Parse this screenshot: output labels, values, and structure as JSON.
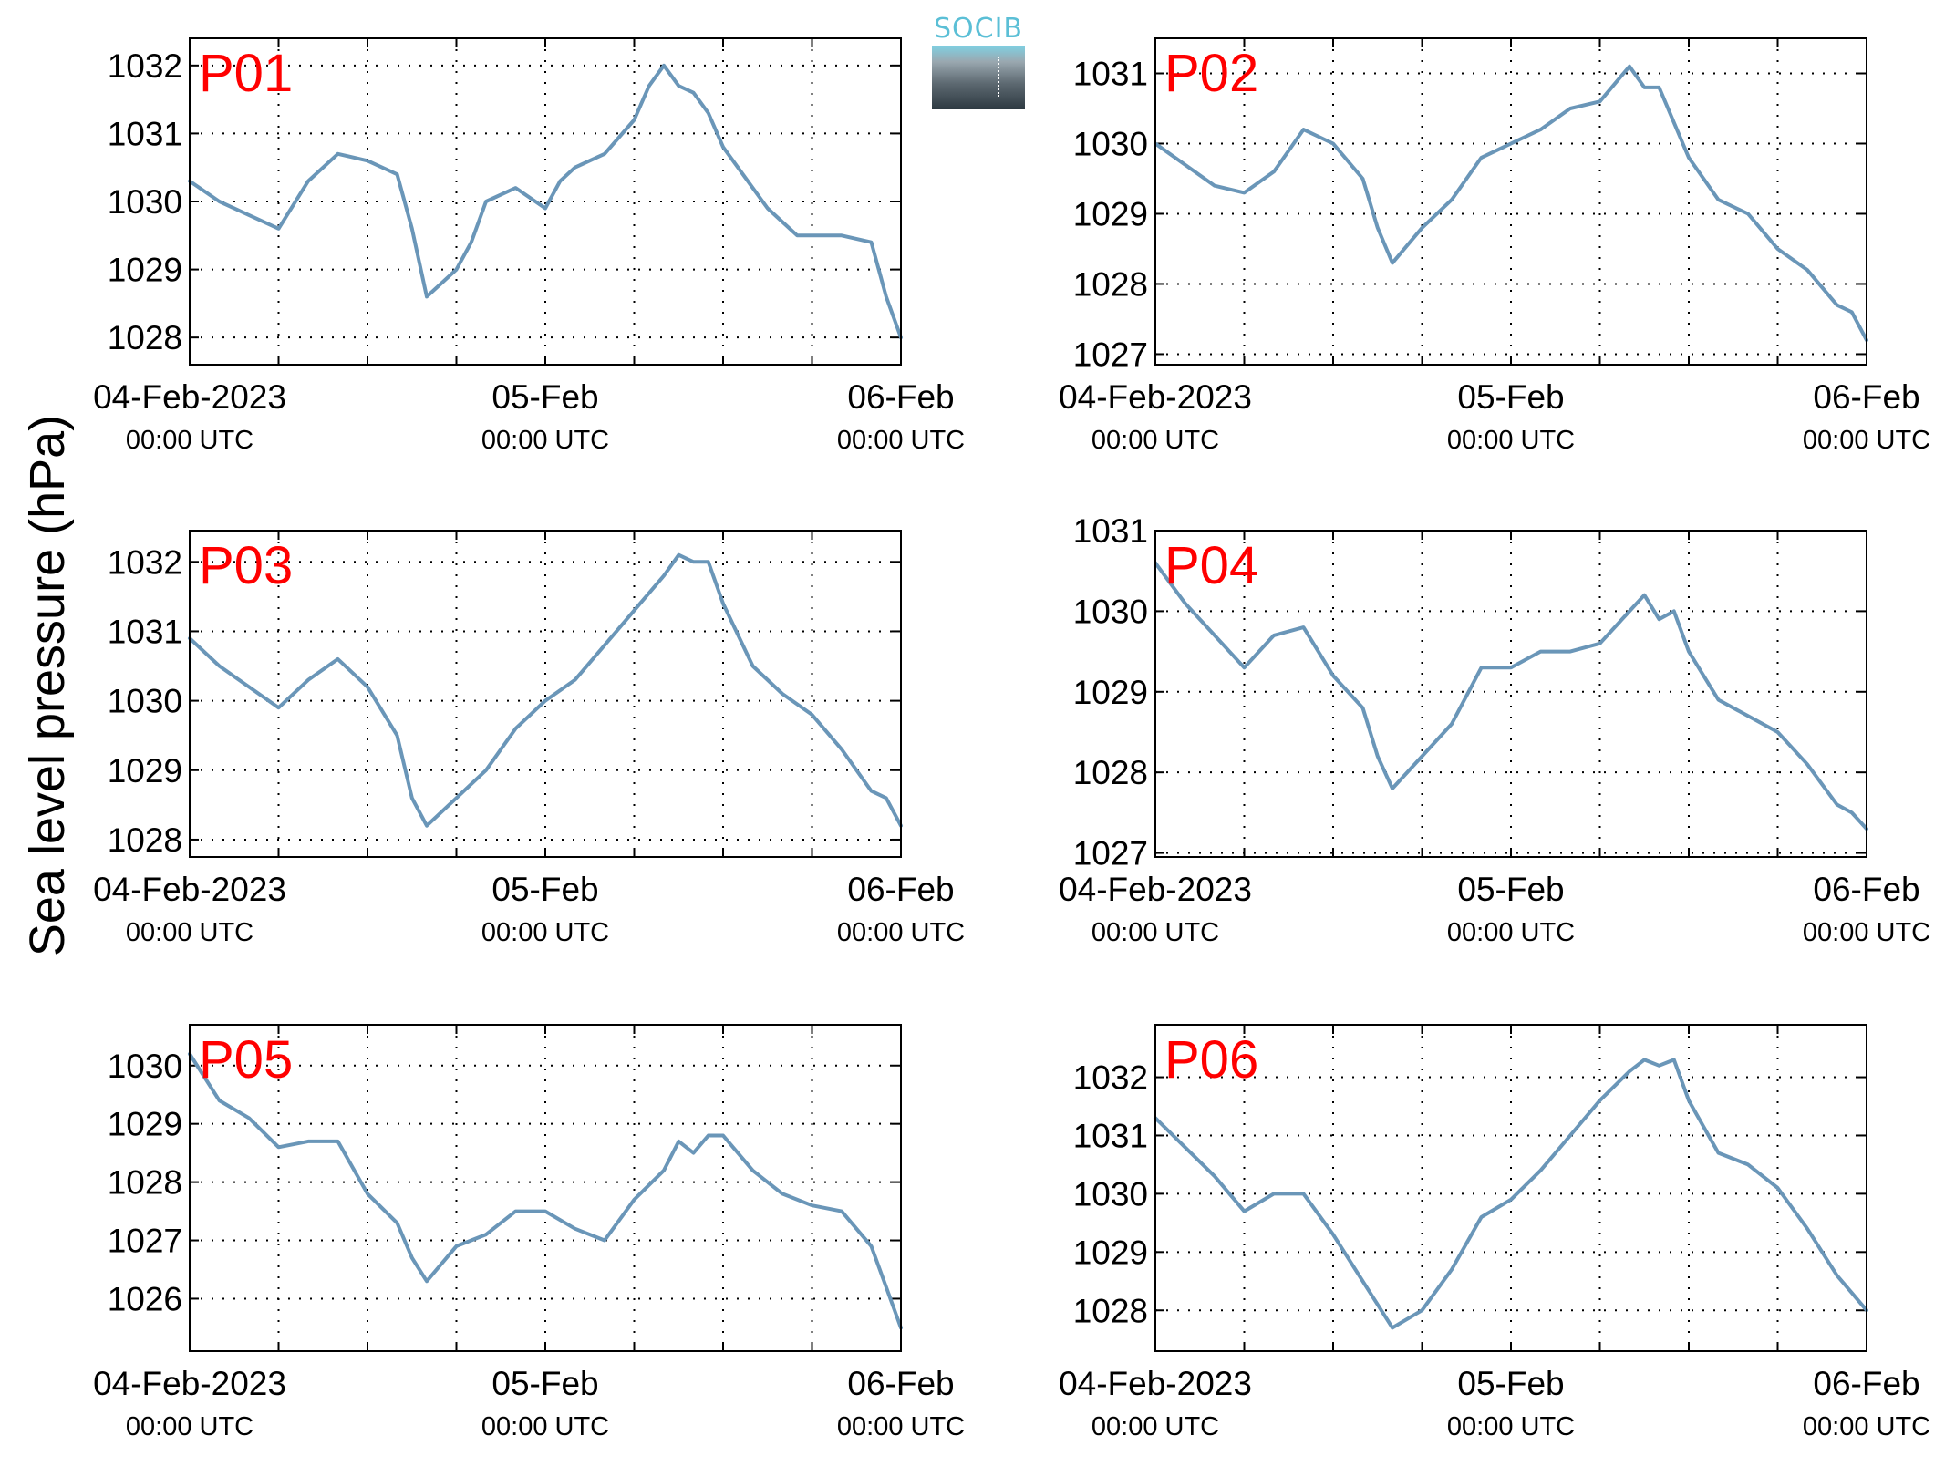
{
  "ylabel": "Sea level pressure (hPa)",
  "logo": {
    "text": "SOCIB",
    "name": "socib-logo"
  },
  "colors": {
    "line": "#6a96b8",
    "panel_label": "#ff0000",
    "grid": "#000000"
  },
  "chart_data": [
    {
      "type": "line",
      "title": "P01",
      "xlim": [
        "04-Feb-2023 00:00",
        "06-Feb-2023 00:00"
      ],
      "xticks": [
        {
          "main": "04-Feb-2023",
          "sub": "00:00 UTC"
        },
        {
          "main": "05-Feb",
          "sub": "00:00 UTC"
        },
        {
          "main": "06-Feb",
          "sub": "00:00 UTC"
        }
      ],
      "ylim": [
        1027.6,
        1032.4
      ],
      "yticks": [
        1028,
        1029,
        1030,
        1031,
        1032
      ],
      "grid": true,
      "x_hours": [
        0,
        2,
        4,
        6,
        8,
        10,
        12,
        14,
        15,
        16,
        17,
        18,
        19,
        20,
        22,
        24,
        25,
        26,
        28,
        30,
        31,
        32,
        33,
        34,
        35,
        36,
        38,
        39,
        40,
        41,
        42,
        44,
        46,
        47,
        48
      ],
      "y": [
        1030.3,
        1030.0,
        1029.8,
        1029.6,
        1030.3,
        1030.7,
        1030.6,
        1030.4,
        1029.6,
        1028.6,
        1028.8,
        1029.0,
        1029.4,
        1030.0,
        1030.2,
        1029.9,
        1030.3,
        1030.5,
        1030.7,
        1031.2,
        1031.7,
        1032.0,
        1031.7,
        1031.6,
        1031.3,
        1030.8,
        1030.2,
        1029.9,
        1029.7,
        1029.5,
        1029.5,
        1029.5,
        1029.4,
        1028.6,
        1028.0
      ]
    },
    {
      "type": "line",
      "title": "P02",
      "xlim": [
        "04-Feb-2023 00:00",
        "06-Feb-2023 00:00"
      ],
      "xticks": [
        {
          "main": "04-Feb-2023",
          "sub": "00:00 UTC"
        },
        {
          "main": "05-Feb",
          "sub": "00:00 UTC"
        },
        {
          "main": "06-Feb",
          "sub": "00:00 UTC"
        }
      ],
      "ylim": [
        1026.85,
        1031.5
      ],
      "yticks": [
        1027,
        1028,
        1029,
        1030,
        1031
      ],
      "grid": true,
      "x_hours": [
        0,
        2,
        4,
        6,
        8,
        10,
        12,
        14,
        15,
        16,
        18,
        20,
        22,
        24,
        26,
        28,
        30,
        32,
        33,
        34,
        36,
        38,
        40,
        42,
        44,
        46,
        47,
        48
      ],
      "y": [
        1030.0,
        1029.7,
        1029.4,
        1029.3,
        1029.6,
        1030.2,
        1030.0,
        1029.5,
        1028.8,
        1028.3,
        1028.8,
        1029.2,
        1029.8,
        1030.0,
        1030.2,
        1030.5,
        1030.6,
        1031.1,
        1030.8,
        1030.8,
        1029.8,
        1029.2,
        1029.0,
        1028.5,
        1028.2,
        1027.7,
        1027.6,
        1027.2
      ]
    },
    {
      "type": "line",
      "title": "P03",
      "xlim": [
        "04-Feb-2023 00:00",
        "06-Feb-2023 00:00"
      ],
      "xticks": [
        {
          "main": "04-Feb-2023",
          "sub": "00:00 UTC"
        },
        {
          "main": "05-Feb",
          "sub": "00:00 UTC"
        },
        {
          "main": "06-Feb",
          "sub": "00:00 UTC"
        }
      ],
      "ylim": [
        1027.75,
        1032.45
      ],
      "yticks": [
        1028,
        1029,
        1030,
        1031,
        1032
      ],
      "grid": true,
      "x_hours": [
        0,
        2,
        4,
        6,
        8,
        10,
        12,
        14,
        15,
        16,
        18,
        20,
        22,
        24,
        26,
        28,
        30,
        32,
        33,
        34,
        35,
        36,
        38,
        40,
        42,
        44,
        46,
        47,
        48
      ],
      "y": [
        1030.9,
        1030.5,
        1030.2,
        1029.9,
        1030.3,
        1030.6,
        1030.2,
        1029.5,
        1028.6,
        1028.2,
        1028.6,
        1029.0,
        1029.6,
        1030.0,
        1030.3,
        1030.8,
        1031.3,
        1031.8,
        1032.1,
        1032.0,
        1032.0,
        1031.4,
        1030.5,
        1030.1,
        1029.8,
        1029.3,
        1028.7,
        1028.6,
        1028.2
      ]
    },
    {
      "type": "line",
      "title": "P04",
      "xlim": [
        "04-Feb-2023 00:00",
        "06-Feb-2023 00:00"
      ],
      "xticks": [
        {
          "main": "04-Feb-2023",
          "sub": "00:00 UTC"
        },
        {
          "main": "05-Feb",
          "sub": "00:00 UTC"
        },
        {
          "main": "06-Feb",
          "sub": "00:00 UTC"
        }
      ],
      "ylim": [
        1026.95,
        1031.0
      ],
      "yticks": [
        1027,
        1028,
        1029,
        1030,
        1031
      ],
      "grid": true,
      "x_hours": [
        0,
        2,
        4,
        6,
        8,
        10,
        12,
        14,
        15,
        16,
        18,
        20,
        22,
        24,
        26,
        28,
        30,
        32,
        33,
        34,
        35,
        36,
        38,
        40,
        42,
        44,
        46,
        47,
        48
      ],
      "y": [
        1030.6,
        1030.1,
        1029.7,
        1029.3,
        1029.7,
        1029.8,
        1029.2,
        1028.8,
        1028.2,
        1027.8,
        1028.2,
        1028.6,
        1029.3,
        1029.3,
        1029.5,
        1029.5,
        1029.6,
        1030.0,
        1030.2,
        1029.9,
        1030.0,
        1029.5,
        1028.9,
        1028.7,
        1028.5,
        1028.1,
        1027.6,
        1027.5,
        1027.3
      ]
    },
    {
      "type": "line",
      "title": "P05",
      "xlim": [
        "04-Feb-2023 00:00",
        "06-Feb-2023 00:00"
      ],
      "xticks": [
        {
          "main": "04-Feb-2023",
          "sub": "00:00 UTC"
        },
        {
          "main": "05-Feb",
          "sub": "00:00 UTC"
        },
        {
          "main": "06-Feb",
          "sub": "00:00 UTC"
        }
      ],
      "ylim": [
        1025.1,
        1030.7
      ],
      "yticks": [
        1026,
        1027,
        1028,
        1029,
        1030
      ],
      "grid": true,
      "x_hours": [
        0,
        2,
        4,
        6,
        8,
        10,
        12,
        14,
        15,
        16,
        18,
        20,
        22,
        24,
        26,
        28,
        30,
        32,
        33,
        34,
        35,
        36,
        38,
        40,
        42,
        44,
        46,
        47,
        48
      ],
      "y": [
        1030.2,
        1029.4,
        1029.1,
        1028.6,
        1028.7,
        1028.7,
        1027.8,
        1027.3,
        1026.7,
        1026.3,
        1026.9,
        1027.1,
        1027.5,
        1027.5,
        1027.2,
        1027.0,
        1027.7,
        1028.2,
        1028.7,
        1028.5,
        1028.8,
        1028.8,
        1028.2,
        1027.8,
        1027.6,
        1027.5,
        1026.9,
        1026.2,
        1025.5
      ]
    },
    {
      "type": "line",
      "title": "P06",
      "xlim": [
        "04-Feb-2023 00:00",
        "06-Feb-2023 00:00"
      ],
      "xticks": [
        {
          "main": "04-Feb-2023",
          "sub": "00:00 UTC"
        },
        {
          "main": "05-Feb",
          "sub": "00:00 UTC"
        },
        {
          "main": "06-Feb",
          "sub": "00:00 UTC"
        }
      ],
      "ylim": [
        1027.3,
        1032.9
      ],
      "yticks": [
        1028,
        1029,
        1030,
        1031,
        1032
      ],
      "grid": true,
      "x_hours": [
        0,
        2,
        4,
        6,
        8,
        10,
        12,
        14,
        15,
        16,
        18,
        20,
        22,
        24,
        26,
        28,
        30,
        32,
        33,
        34,
        35,
        36,
        38,
        40,
        42,
        44,
        46,
        47,
        48
      ],
      "y": [
        1031.3,
        1030.8,
        1030.3,
        1029.7,
        1030.0,
        1030.0,
        1029.3,
        1028.5,
        1028.1,
        1027.7,
        1028.0,
        1028.7,
        1029.6,
        1029.9,
        1030.4,
        1031.0,
        1031.6,
        1032.1,
        1032.3,
        1032.2,
        1032.3,
        1031.6,
        1030.7,
        1030.5,
        1030.1,
        1029.4,
        1028.6,
        1028.3,
        1028.0
      ]
    }
  ]
}
